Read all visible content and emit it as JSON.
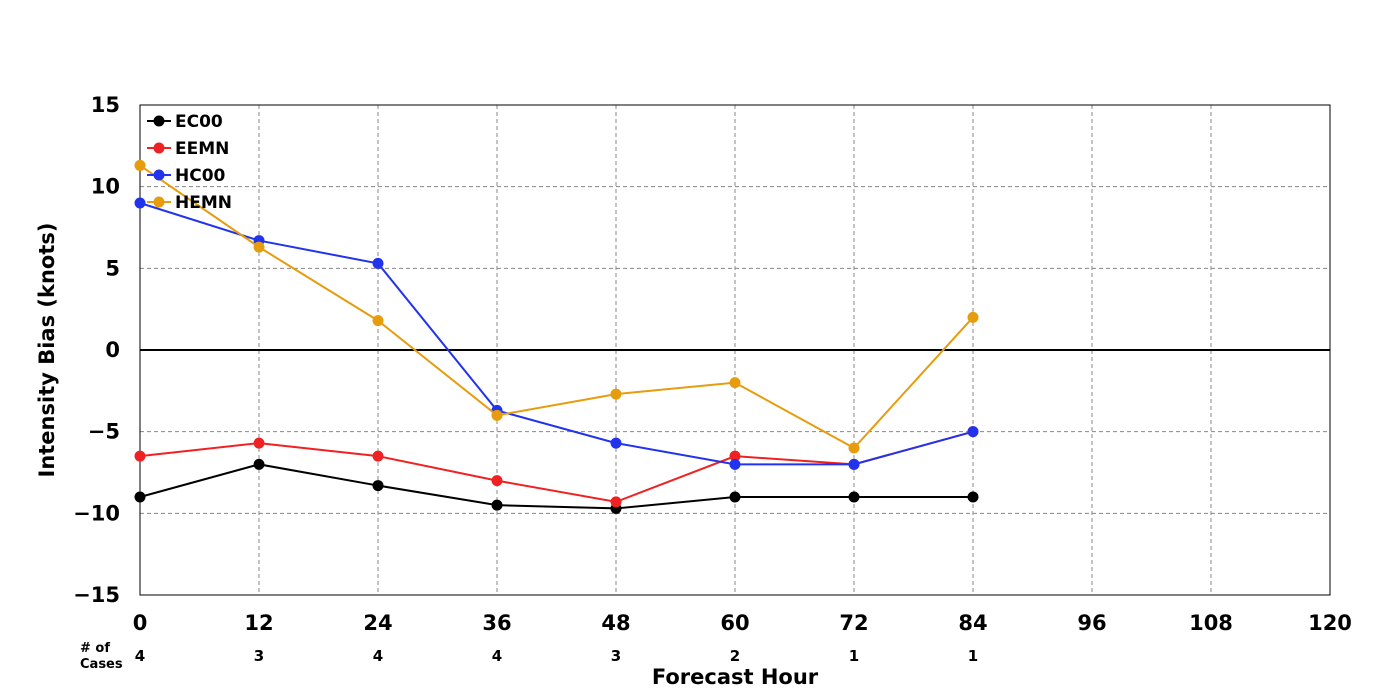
{
  "chart_data": {
    "type": "line",
    "title": "",
    "xlabel": "Forecast Hour",
    "ylabel": "Intensity Bias (knots)",
    "xlim": [
      0,
      120
    ],
    "ylim": [
      -15,
      15
    ],
    "x_ticks": [
      0,
      12,
      24,
      36,
      48,
      60,
      72,
      84,
      96,
      108,
      120
    ],
    "y_ticks": [
      -15,
      -10,
      -5,
      0,
      5,
      10,
      15
    ],
    "y_tick_labels": [
      "−15",
      "−10",
      "−5",
      "0",
      "5",
      "10",
      "15"
    ],
    "grid": true,
    "legend_position": "top-left",
    "cases_label": "# of\nCases",
    "cases_label_lines": [
      "# of",
      "Cases"
    ],
    "cases": [
      {
        "x": 0,
        "count": "4"
      },
      {
        "x": 12,
        "count": "3"
      },
      {
        "x": 24,
        "count": "4"
      },
      {
        "x": 36,
        "count": "4"
      },
      {
        "x": 48,
        "count": "3"
      },
      {
        "x": 60,
        "count": "2"
      },
      {
        "x": 72,
        "count": "1"
      },
      {
        "x": 84,
        "count": "1"
      }
    ],
    "x": [
      0,
      12,
      24,
      36,
      48,
      60,
      72,
      84
    ],
    "series": [
      {
        "name": "EC00",
        "color": "#000000",
        "values": [
          -9.0,
          -7.0,
          -8.3,
          -9.5,
          -9.7,
          -9.0,
          -9.0,
          -9.0
        ]
      },
      {
        "name": "EEMN",
        "color": "#ee2222",
        "values": [
          -6.5,
          -5.7,
          -6.5,
          -8.0,
          -9.3,
          -6.5,
          -7.0,
          -5.0
        ]
      },
      {
        "name": "HC00",
        "color": "#2233ee",
        "values": [
          9.0,
          6.7,
          5.3,
          -3.7,
          -5.7,
          -7.0,
          -7.0,
          -5.0
        ]
      },
      {
        "name": "HEMN",
        "color": "#e69c0d",
        "values": [
          11.3,
          6.3,
          1.8,
          -4.0,
          -2.7,
          -2.0,
          -6.0,
          2.0
        ]
      }
    ]
  }
}
